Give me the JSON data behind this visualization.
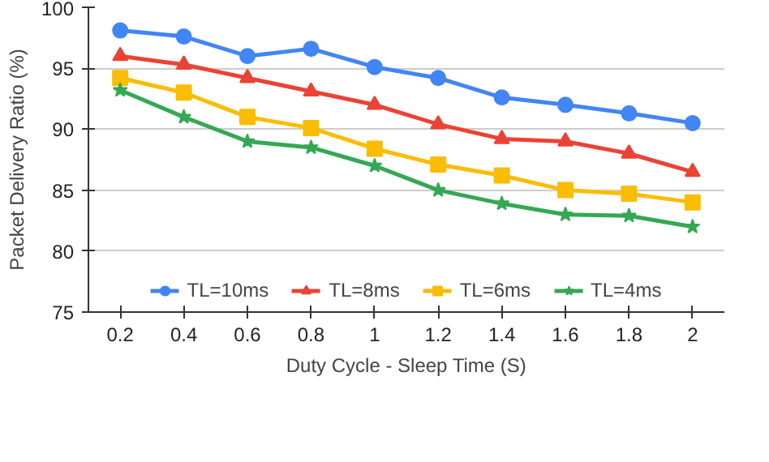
{
  "chart_data": {
    "type": "line",
    "xlabel": "Duty Cycle - Sleep Time (S)",
    "ylabel": "Packet Delivery Ratio (%)",
    "categories": [
      "0.2",
      "0.4",
      "0.6",
      "0.8",
      "1",
      "1.2",
      "1.4",
      "1.6",
      "1.8",
      "2"
    ],
    "ylim": [
      75,
      100
    ],
    "yticks": [
      75,
      80,
      85,
      90,
      95,
      100
    ],
    "grid": "y",
    "legend": "bottom",
    "line_style": "solid",
    "series": [
      {
        "name": "TL=10ms",
        "color": "#4285f4",
        "marker": "circle",
        "values": [
          98.1,
          97.6,
          96.0,
          96.6,
          95.1,
          94.2,
          92.6,
          92.0,
          91.3,
          90.5
        ]
      },
      {
        "name": "TL=8ms",
        "color": "#ea4335",
        "marker": "triangle",
        "values": [
          96.0,
          95.3,
          94.2,
          93.1,
          92.0,
          90.4,
          89.2,
          89.0,
          88.0,
          86.5
        ]
      },
      {
        "name": "TL=6ms",
        "color": "#fbbc04",
        "marker": "square",
        "values": [
          94.2,
          93.0,
          91.0,
          90.1,
          88.4,
          87.1,
          86.2,
          85.0,
          84.7,
          84.0
        ]
      },
      {
        "name": "TL=4ms",
        "color": "#34a853",
        "marker": "star",
        "values": [
          93.2,
          91.0,
          89.0,
          88.5,
          87.0,
          85.0,
          83.9,
          83.0,
          82.9,
          82.0
        ]
      }
    ]
  }
}
